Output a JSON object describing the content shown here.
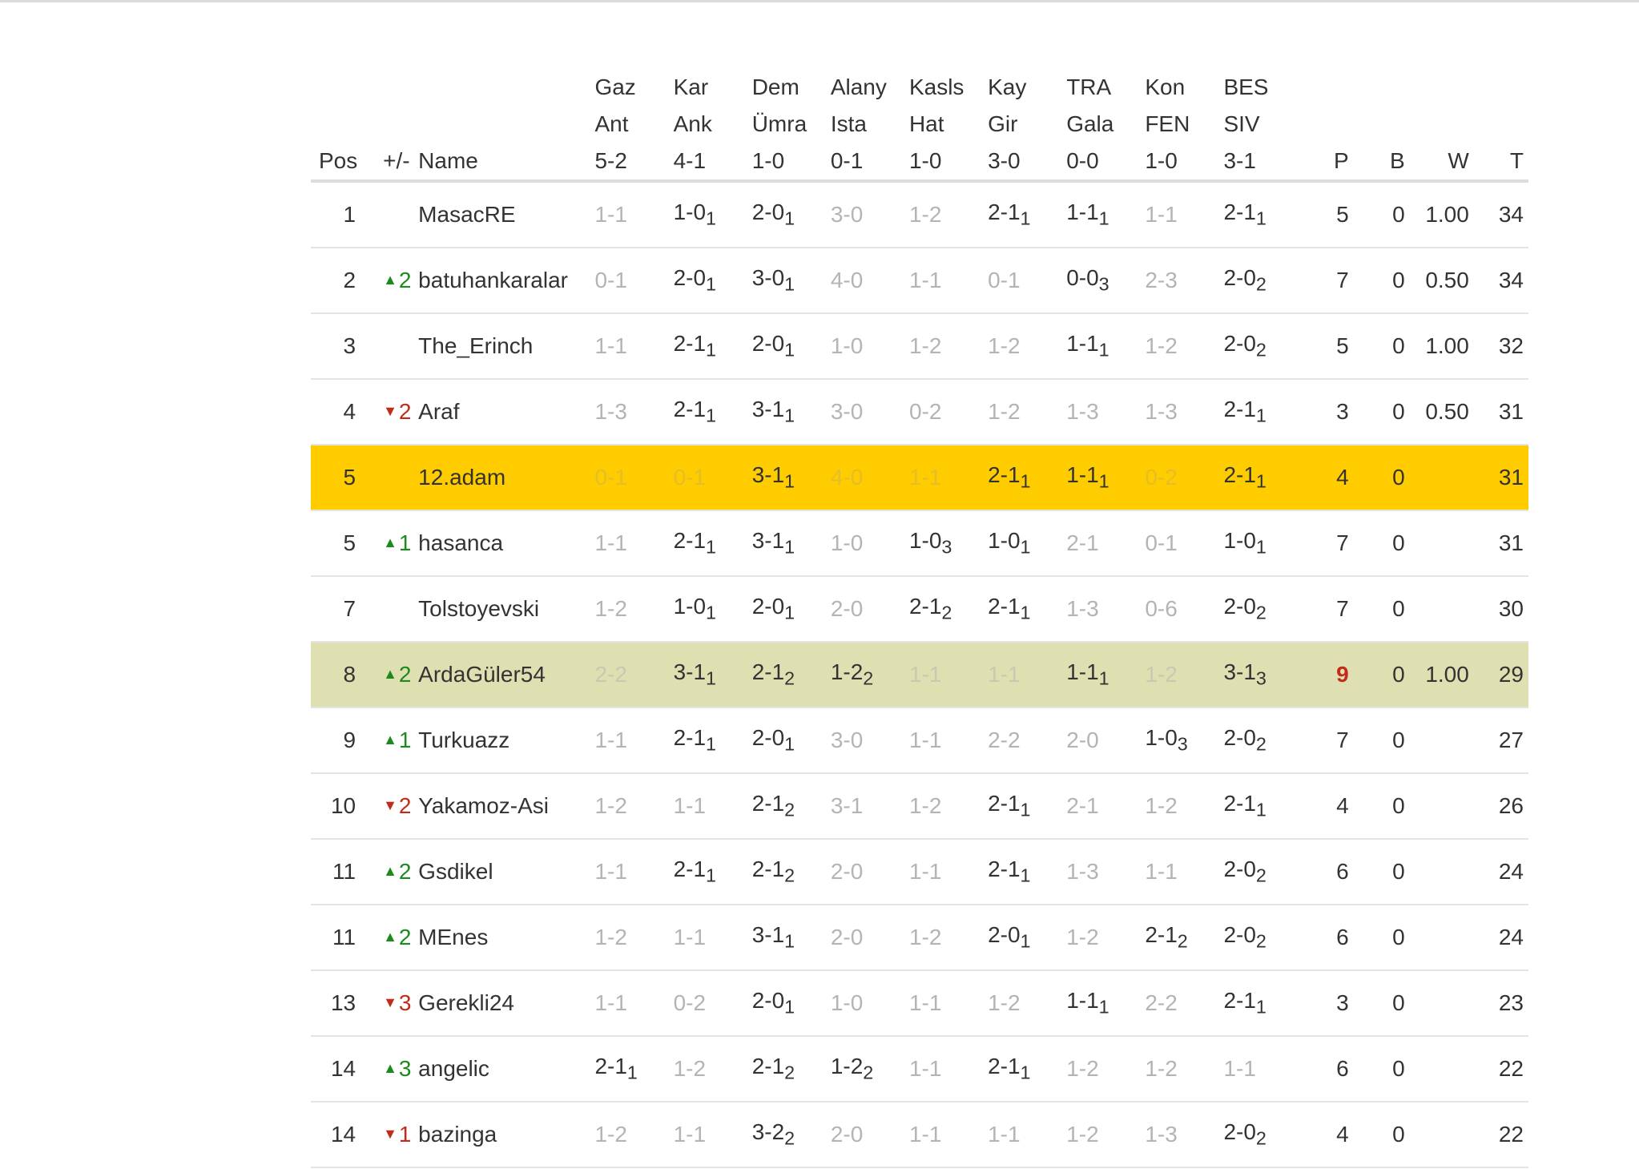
{
  "columns": {
    "pos": "Pos",
    "change": "+/-",
    "name": "Name",
    "matches": [
      [
        "Gaz",
        "Ant",
        "5-2"
      ],
      [
        "Kar",
        "Ank",
        "4-1"
      ],
      [
        "Dem",
        "Ümra",
        "1-0"
      ],
      [
        "Alany",
        "Ista",
        "0-1"
      ],
      [
        "Kasls",
        "Hat",
        "1-0"
      ],
      [
        "Kay",
        "Gir",
        "3-0"
      ],
      [
        "TRA",
        "Gala",
        "0-0"
      ],
      [
        "Kon",
        "FEN",
        "1-0"
      ],
      [
        "BES",
        "SIV",
        "3-1"
      ]
    ],
    "p": "P",
    "b": "B",
    "w": "W",
    "t": "T"
  },
  "rows": [
    {
      "pos": "1",
      "dir": "",
      "chg": "",
      "name": "MasacRE",
      "picks": [
        [
          "1-1",
          ""
        ],
        [
          "1-0",
          "1"
        ],
        [
          "2-0",
          "1"
        ],
        [
          "3-0",
          ""
        ],
        [
          "1-2",
          ""
        ],
        [
          "2-1",
          "1"
        ],
        [
          "1-1",
          "1"
        ],
        [
          "1-1",
          ""
        ],
        [
          "2-1",
          "1"
        ]
      ],
      "p": "5",
      "b": "0",
      "w": "1.00",
      "t": "34"
    },
    {
      "pos": "2",
      "dir": "up",
      "chg": "2",
      "name": "batuhankaralar",
      "picks": [
        [
          "0-1",
          ""
        ],
        [
          "2-0",
          "1"
        ],
        [
          "3-0",
          "1"
        ],
        [
          "4-0",
          ""
        ],
        [
          "1-1",
          ""
        ],
        [
          "0-1",
          ""
        ],
        [
          "0-0",
          "3"
        ],
        [
          "2-3",
          ""
        ],
        [
          "2-0",
          "2"
        ]
      ],
      "p": "7",
      "b": "0",
      "w": "0.50",
      "t": "34"
    },
    {
      "pos": "3",
      "dir": "",
      "chg": "",
      "name": "The_Erinch",
      "picks": [
        [
          "1-1",
          ""
        ],
        [
          "2-1",
          "1"
        ],
        [
          "2-0",
          "1"
        ],
        [
          "1-0",
          ""
        ],
        [
          "1-2",
          ""
        ],
        [
          "1-2",
          ""
        ],
        [
          "1-1",
          "1"
        ],
        [
          "1-2",
          ""
        ],
        [
          "2-0",
          "2"
        ]
      ],
      "p": "5",
      "b": "0",
      "w": "1.00",
      "t": "32"
    },
    {
      "pos": "4",
      "dir": "down",
      "chg": "2",
      "name": "Araf",
      "picks": [
        [
          "1-3",
          ""
        ],
        [
          "2-1",
          "1"
        ],
        [
          "3-1",
          "1"
        ],
        [
          "3-0",
          ""
        ],
        [
          "0-2",
          ""
        ],
        [
          "1-2",
          ""
        ],
        [
          "1-3",
          ""
        ],
        [
          "1-3",
          ""
        ],
        [
          "2-1",
          "1"
        ]
      ],
      "p": "3",
      "b": "0",
      "w": "0.50",
      "t": "31"
    },
    {
      "pos": "5",
      "dir": "",
      "chg": "",
      "name": "12.adam",
      "me": true,
      "picks": [
        [
          "0-1",
          ""
        ],
        [
          "0-1",
          ""
        ],
        [
          "3-1",
          "1"
        ],
        [
          "4-0",
          ""
        ],
        [
          "1-1",
          ""
        ],
        [
          "2-1",
          "1"
        ],
        [
          "1-1",
          "1"
        ],
        [
          "0-2",
          ""
        ],
        [
          "2-1",
          "1"
        ]
      ],
      "p": "4",
      "b": "0",
      "w": "",
      "t": "31"
    },
    {
      "pos": "5",
      "dir": "up",
      "chg": "1",
      "name": "hasanca",
      "picks": [
        [
          "1-1",
          ""
        ],
        [
          "2-1",
          "1"
        ],
        [
          "3-1",
          "1"
        ],
        [
          "1-0",
          ""
        ],
        [
          "1-0",
          "3"
        ],
        [
          "1-0",
          "1"
        ],
        [
          "2-1",
          ""
        ],
        [
          "0-1",
          ""
        ],
        [
          "1-0",
          "1"
        ]
      ],
      "p": "7",
      "b": "0",
      "w": "",
      "t": "31"
    },
    {
      "pos": "7",
      "dir": "",
      "chg": "",
      "name": "Tolstoyevski",
      "picks": [
        [
          "1-2",
          ""
        ],
        [
          "1-0",
          "1"
        ],
        [
          "2-0",
          "1"
        ],
        [
          "2-0",
          ""
        ],
        [
          "2-1",
          "2"
        ],
        [
          "2-1",
          "1"
        ],
        [
          "1-3",
          ""
        ],
        [
          "0-6",
          ""
        ],
        [
          "2-0",
          "2"
        ]
      ],
      "p": "7",
      "b": "0",
      "w": "",
      "t": "30"
    },
    {
      "pos": "8",
      "dir": "up",
      "chg": "2",
      "name": "ArdaGüler54",
      "sel": true,
      "pbold": true,
      "picks": [
        [
          "2-2",
          ""
        ],
        [
          "3-1",
          "1"
        ],
        [
          "2-1",
          "2"
        ],
        [
          "1-2",
          "2"
        ],
        [
          "1-1",
          ""
        ],
        [
          "1-1",
          ""
        ],
        [
          "1-1",
          "1"
        ],
        [
          "1-2",
          ""
        ],
        [
          "3-1",
          "3"
        ]
      ],
      "p": "9",
      "b": "0",
      "w": "1.00",
      "t": "29"
    },
    {
      "pos": "9",
      "dir": "up",
      "chg": "1",
      "name": "Turkuazz",
      "picks": [
        [
          "1-1",
          ""
        ],
        [
          "2-1",
          "1"
        ],
        [
          "2-0",
          "1"
        ],
        [
          "3-0",
          ""
        ],
        [
          "1-1",
          ""
        ],
        [
          "2-2",
          ""
        ],
        [
          "2-0",
          ""
        ],
        [
          "1-0",
          "3"
        ],
        [
          "2-0",
          "2"
        ]
      ],
      "p": "7",
      "b": "0",
      "w": "",
      "t": "27"
    },
    {
      "pos": "10",
      "dir": "down",
      "chg": "2",
      "name": "Yakamoz-Asi",
      "picks": [
        [
          "1-2",
          ""
        ],
        [
          "1-1",
          ""
        ],
        [
          "2-1",
          "2"
        ],
        [
          "3-1",
          ""
        ],
        [
          "1-2",
          ""
        ],
        [
          "2-1",
          "1"
        ],
        [
          "2-1",
          ""
        ],
        [
          "1-2",
          ""
        ],
        [
          "2-1",
          "1"
        ]
      ],
      "p": "4",
      "b": "0",
      "w": "",
      "t": "26"
    },
    {
      "pos": "11",
      "dir": "up",
      "chg": "2",
      "name": "Gsdikel",
      "picks": [
        [
          "1-1",
          ""
        ],
        [
          "2-1",
          "1"
        ],
        [
          "2-1",
          "2"
        ],
        [
          "2-0",
          ""
        ],
        [
          "1-1",
          ""
        ],
        [
          "2-1",
          "1"
        ],
        [
          "1-3",
          ""
        ],
        [
          "1-1",
          ""
        ],
        [
          "2-0",
          "2"
        ]
      ],
      "p": "6",
      "b": "0",
      "w": "",
      "t": "24"
    },
    {
      "pos": "11",
      "dir": "up",
      "chg": "2",
      "name": "MEnes",
      "picks": [
        [
          "1-2",
          ""
        ],
        [
          "1-1",
          ""
        ],
        [
          "3-1",
          "1"
        ],
        [
          "2-0",
          ""
        ],
        [
          "1-2",
          ""
        ],
        [
          "2-0",
          "1"
        ],
        [
          "1-2",
          ""
        ],
        [
          "2-1",
          "2"
        ],
        [
          "2-0",
          "2"
        ]
      ],
      "p": "6",
      "b": "0",
      "w": "",
      "t": "24"
    },
    {
      "pos": "13",
      "dir": "down",
      "chg": "3",
      "name": "Gerekli24",
      "picks": [
        [
          "1-1",
          ""
        ],
        [
          "0-2",
          ""
        ],
        [
          "2-0",
          "1"
        ],
        [
          "1-0",
          ""
        ],
        [
          "1-1",
          ""
        ],
        [
          "1-2",
          ""
        ],
        [
          "1-1",
          "1"
        ],
        [
          "2-2",
          ""
        ],
        [
          "2-1",
          "1"
        ]
      ],
      "p": "3",
      "b": "0",
      "w": "",
      "t": "23"
    },
    {
      "pos": "14",
      "dir": "up",
      "chg": "3",
      "name": "angelic",
      "picks": [
        [
          "2-1",
          "1"
        ],
        [
          "1-2",
          ""
        ],
        [
          "2-1",
          "2"
        ],
        [
          "1-2",
          "2"
        ],
        [
          "1-1",
          ""
        ],
        [
          "2-1",
          "1"
        ],
        [
          "1-2",
          ""
        ],
        [
          "1-2",
          ""
        ],
        [
          "1-1",
          ""
        ]
      ],
      "p": "6",
      "b": "0",
      "w": "",
      "t": "22"
    },
    {
      "pos": "14",
      "dir": "down",
      "chg": "1",
      "name": "bazinga",
      "picks": [
        [
          "1-2",
          ""
        ],
        [
          "1-1",
          ""
        ],
        [
          "3-2",
          "2"
        ],
        [
          "2-0",
          ""
        ],
        [
          "1-1",
          ""
        ],
        [
          "1-1",
          ""
        ],
        [
          "1-2",
          ""
        ],
        [
          "1-3",
          ""
        ],
        [
          "2-0",
          "2"
        ]
      ],
      "p": "4",
      "b": "0",
      "w": "",
      "t": "22"
    }
  ],
  "colors": {
    "highlight_me": "#ffcc00",
    "highlight_selected": "#dfe0b2",
    "up": "#1d8a1d",
    "down": "#c12b1a"
  }
}
